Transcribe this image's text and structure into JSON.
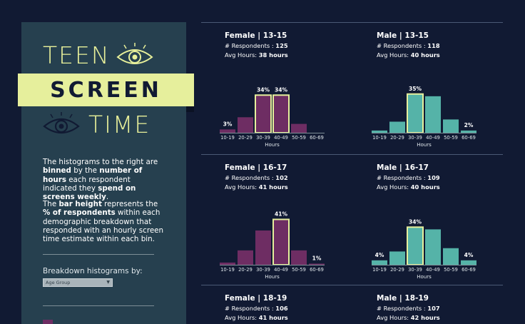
{
  "sidebar": {
    "title_line1": "TEEN",
    "title_banner": "SCREEN",
    "title_line3": "TIME",
    "p1": {
      "a": "The histograms to the right are ",
      "b": "binned",
      "c": " by the ",
      "d": "number of hours",
      "e": " each respondent indicated they ",
      "f": "spend on screens weekly",
      "g": "."
    },
    "p2": {
      "a": "The ",
      "b": "bar height",
      "c": " represents the ",
      "d": "% of respondents",
      "e": " within each demographic breakdown that responded with an hourly screen time estimate within each bin."
    },
    "breakdown_label": "Breakdown histograms by:",
    "breakdown_value": "Age Group"
  },
  "labels": {
    "respondents": "# Respondents : ",
    "avg_hours": "Avg Hours: ",
    "x_axis": "Hours"
  },
  "colors": {
    "female": "#6e2d63",
    "male": "#55b3a8",
    "highlight": "#e6ef9c",
    "axis": "#7d8e96"
  },
  "chart_data": [
    {
      "type": "bar",
      "title": "Female | 13-15",
      "respondents": "125",
      "avg_hours": "38 hours",
      "categories": [
        "10-19",
        "20-29",
        "30-39",
        "40-49",
        "50-59",
        "60-69"
      ],
      "values": [
        3,
        14,
        34,
        34,
        8,
        0
      ],
      "highlight": [
        2,
        3
      ],
      "labeled": [
        0,
        2,
        3
      ],
      "xlabel": "Hours",
      "series_color": "female"
    },
    {
      "type": "bar",
      "title": "Male | 13-15",
      "respondents": "118",
      "avg_hours": "40 hours",
      "categories": [
        "10-19",
        "20-29",
        "30-39",
        "40-49",
        "50-59",
        "60-69"
      ],
      "values": [
        2,
        10,
        35,
        33,
        12,
        2
      ],
      "highlight": [
        2
      ],
      "labeled": [
        2,
        5
      ],
      "xlabel": "Hours",
      "series_color": "male"
    },
    {
      "type": "bar",
      "title": "Female | 16-17",
      "respondents": "102",
      "avg_hours": "41 hours",
      "categories": [
        "10-19",
        "20-29",
        "30-39",
        "40-49",
        "50-59",
        "60-69"
      ],
      "values": [
        2,
        13,
        31,
        41,
        13,
        1
      ],
      "highlight": [
        3
      ],
      "labeled": [
        3,
        5
      ],
      "xlabel": "Hours",
      "series_color": "female"
    },
    {
      "type": "bar",
      "title": "Male | 16-17",
      "respondents": "109",
      "avg_hours": "40 hours",
      "categories": [
        "10-19",
        "20-29",
        "30-39",
        "40-49",
        "50-59",
        "60-69"
      ],
      "values": [
        4,
        12,
        34,
        32,
        15,
        4
      ],
      "highlight": [
        2
      ],
      "labeled": [
        0,
        2,
        5
      ],
      "xlabel": "Hours",
      "series_color": "male"
    },
    {
      "type": "bar",
      "title": "Female | 18-19",
      "respondents": "106",
      "avg_hours": "41 hours",
      "categories": [],
      "values": [],
      "highlight": [],
      "labeled": [],
      "xlabel": "",
      "series_color": "female"
    },
    {
      "type": "bar",
      "title": "Male | 18-19",
      "respondents": "107",
      "avg_hours": "42 hours",
      "categories": [],
      "values": [],
      "highlight": [],
      "labeled": [],
      "xlabel": "",
      "series_color": "male"
    }
  ]
}
